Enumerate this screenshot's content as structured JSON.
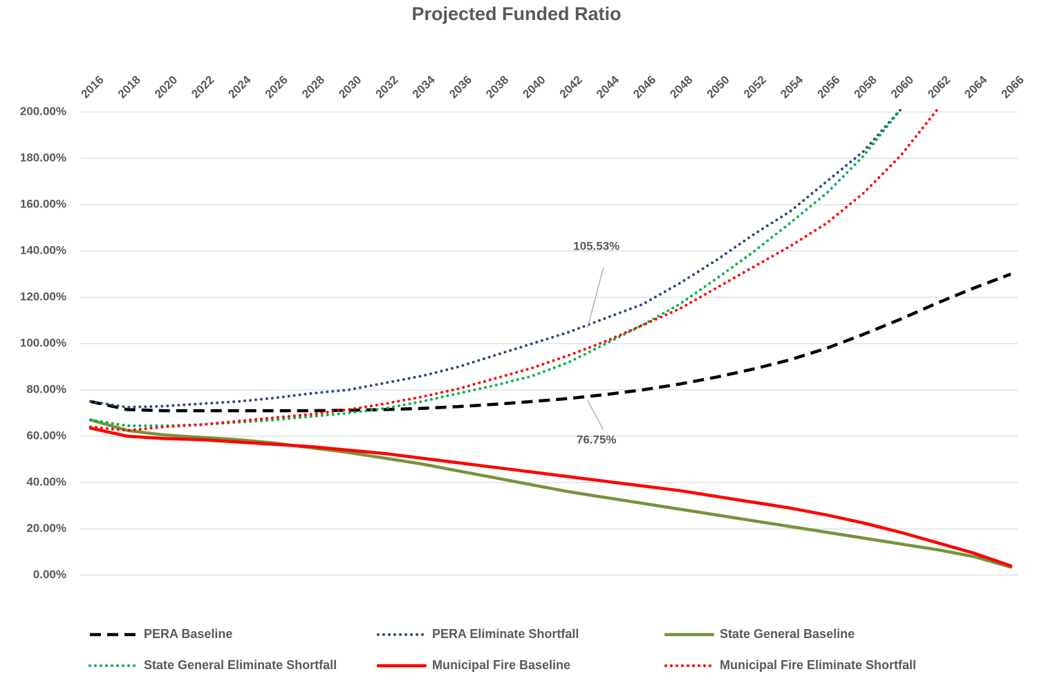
{
  "chart_data": {
    "type": "line",
    "title": "Projected Funded Ratio",
    "x": [
      2016,
      2018,
      2020,
      2022,
      2024,
      2026,
      2028,
      2030,
      2032,
      2034,
      2036,
      2038,
      2040,
      2042,
      2044,
      2046,
      2048,
      2050,
      2052,
      2054,
      2056,
      2058,
      2060,
      2062,
      2064,
      2066
    ],
    "xlim": [
      2016,
      2066
    ],
    "xticks": [
      2016,
      2018,
      2020,
      2022,
      2024,
      2026,
      2028,
      2030,
      2032,
      2034,
      2036,
      2038,
      2040,
      2042,
      2044,
      2046,
      2048,
      2050,
      2052,
      2054,
      2056,
      2058,
      2060,
      2062,
      2064,
      2066
    ],
    "ylim": [
      0,
      200
    ],
    "yticks": [
      {
        "value": 0,
        "label": "0.00%"
      },
      {
        "value": 20,
        "label": "20.00%"
      },
      {
        "value": 40,
        "label": "40.00%"
      },
      {
        "value": 60,
        "label": "60.00%"
      },
      {
        "value": 80,
        "label": "80.00%"
      },
      {
        "value": 100,
        "label": "100.00%"
      },
      {
        "value": 120,
        "label": "120.00%"
      },
      {
        "value": 140,
        "label": "140.00%"
      },
      {
        "value": 160,
        "label": "160.00%"
      },
      {
        "value": 180,
        "label": "180.00%"
      },
      {
        "value": 200,
        "label": "200.00%"
      }
    ],
    "grid": true,
    "legend": "bottom",
    "series": [
      {
        "name": "PERA Baseline",
        "color": "#000000",
        "dash": "dash",
        "values": [
          75,
          71.5,
          71,
          71,
          71,
          71,
          71,
          71.2,
          71.5,
          72,
          72.8,
          73.8,
          75,
          76.3,
          78,
          80,
          82.5,
          85.5,
          89,
          93,
          98,
          104,
          110.5,
          117.5,
          124,
          130
        ]
      },
      {
        "name": "PERA Eliminate Shortfall",
        "color": "#2e4a76",
        "dash": "dot",
        "values": [
          75,
          72.5,
          73,
          74,
          75,
          76.5,
          78.5,
          80,
          83,
          86,
          90,
          95,
          100,
          105,
          111,
          117,
          126,
          136,
          147,
          157,
          170,
          183,
          201,
          null,
          null,
          null
        ]
      },
      {
        "name": "State General Baseline",
        "color": "#77933c",
        "dash": "solid",
        "values": [
          67,
          62.5,
          60.5,
          59.5,
          58.5,
          57,
          55,
          53,
          50.5,
          48,
          45,
          42,
          39,
          36,
          33.5,
          31,
          28.5,
          26,
          23.5,
          21,
          18.5,
          16,
          13.5,
          11,
          8,
          3.5
        ]
      },
      {
        "name": "State General Eliminate Shortfall",
        "color": "#00b050",
        "dash": "dot",
        "values": [
          67,
          64.5,
          64.5,
          65,
          66,
          67,
          68.5,
          70,
          72,
          75,
          78.5,
          82,
          86,
          92,
          100,
          108,
          117,
          128,
          139.5,
          152,
          165,
          181,
          201,
          null,
          null,
          null
        ]
      },
      {
        "name": "Municipal Fire Baseline",
        "color": "#ff0000",
        "dash": "solid",
        "values": [
          63.5,
          60,
          59,
          58.5,
          57.5,
          56.5,
          55.5,
          54,
          52.5,
          50.5,
          48.5,
          46.5,
          44.5,
          42.5,
          40.5,
          38.5,
          36.5,
          34,
          31.5,
          29,
          26,
          22.5,
          18.5,
          14,
          9.5,
          4
        ]
      },
      {
        "name": "Municipal Fire Eliminate Shortfall",
        "color": "#ff0000",
        "dash": "dot",
        "values": [
          64,
          62.5,
          64,
          65,
          66.5,
          68,
          69.5,
          71.5,
          74,
          77,
          80.5,
          85,
          89.5,
          95,
          101,
          108,
          115,
          124,
          133,
          142,
          152,
          165,
          181,
          201,
          null,
          null
        ]
      }
    ],
    "annotations": [
      {
        "text": "105.53%",
        "x": 2043,
        "y": 105.53
      },
      {
        "text": "76.75%",
        "x": 2043,
        "y": 76.75
      }
    ]
  }
}
